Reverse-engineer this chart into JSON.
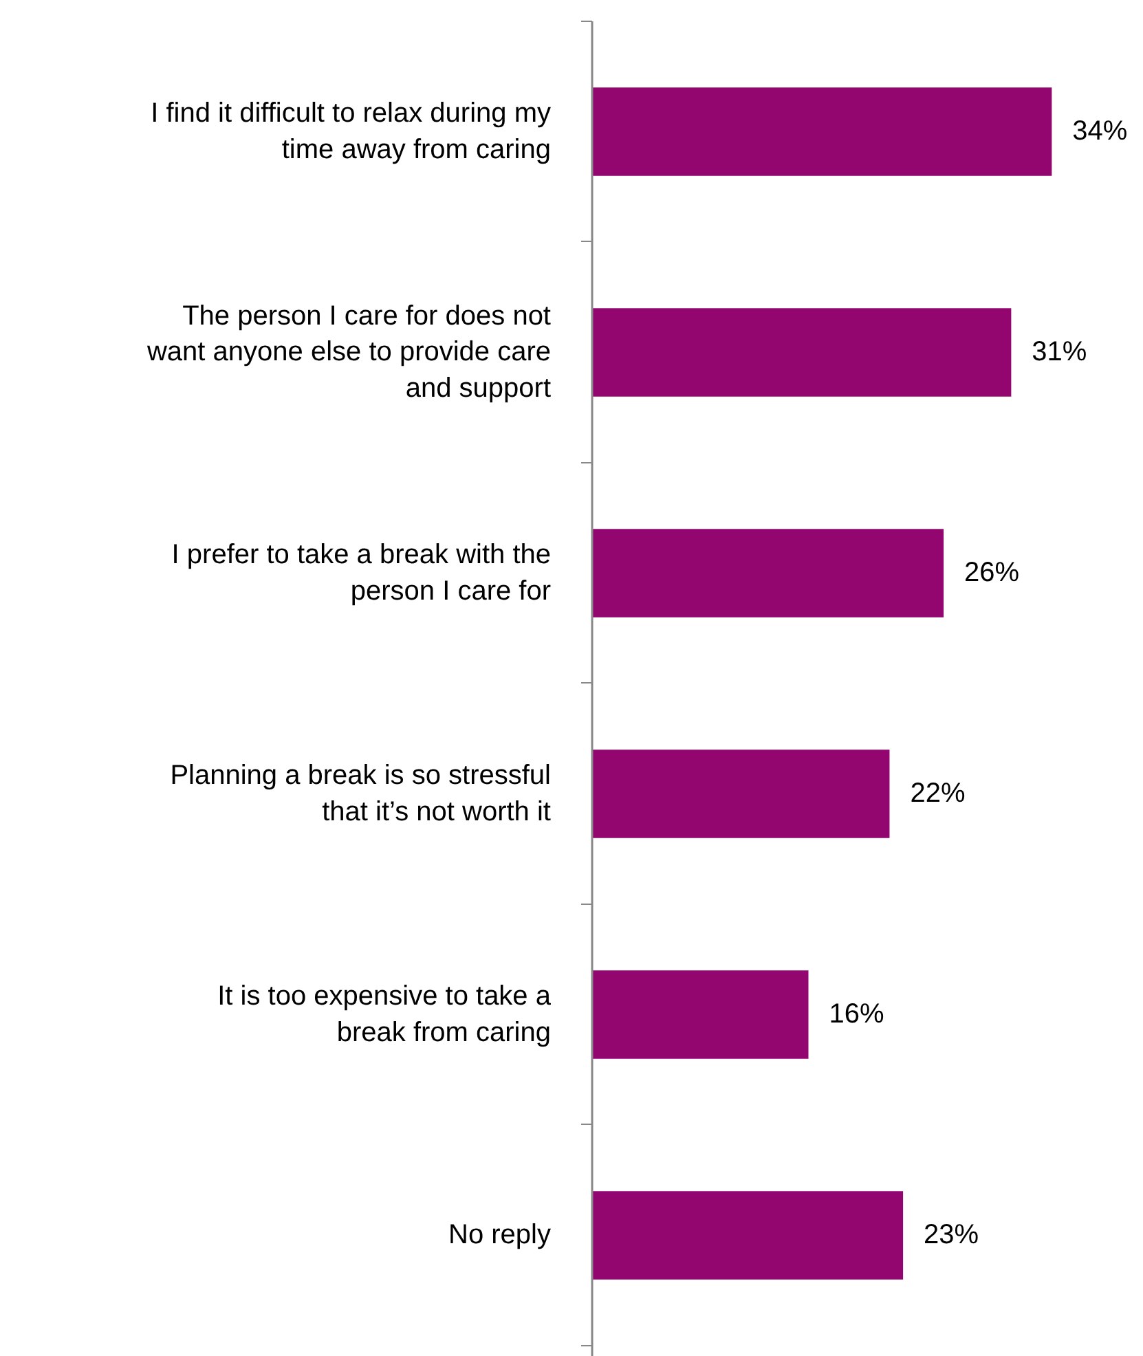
{
  "chart_data": {
    "type": "bar",
    "orientation": "horizontal",
    "data_labels": true,
    "grid": false,
    "tick_labels": "y",
    "categories": [
      "I find it difficult to relax during my\ntime away from caring",
      "The person I care for does not\nwant anyone else to provide care\nand support",
      "I prefer to take a break with the\nperson I care for",
      "Planning a break is so stressful\nthat it’s not worth it",
      "It is too expensive to take a\nbreak from caring",
      "No reply"
    ],
    "values": [
      34,
      31,
      26,
      22,
      16,
      23
    ],
    "value_labels": [
      "34%",
      "31%",
      "26%",
      "22%",
      "16%",
      "23%"
    ],
    "color": "#93056f"
  }
}
